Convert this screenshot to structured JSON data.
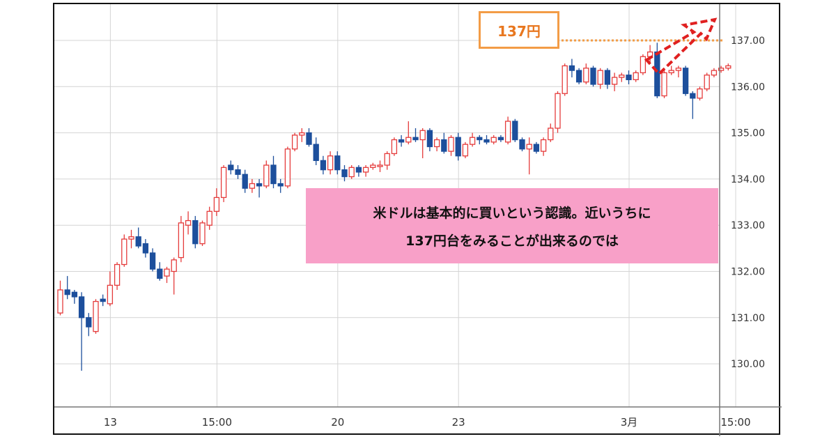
{
  "callout": {
    "label": "137円",
    "level": 137.0,
    "color": "#f39c46"
  },
  "comment": {
    "line1": "米ドルは基本的に買いという認識。近いうちに",
    "line2": "137円台をみることが出来るのでは",
    "bg_color": "#f8a0c8"
  },
  "colors": {
    "up": "#e53b3b",
    "down": "#1d4f9c",
    "grid": "#d4d4d4",
    "arrow": "#e02020"
  },
  "chart_data": {
    "type": "candlestick",
    "title": "",
    "xlabel": "",
    "ylabel": "",
    "ylim": [
      129.0,
      137.8
    ],
    "grid": true,
    "y_ticks": [
      "130.00",
      "131.00",
      "132.00",
      "133.00",
      "134.00",
      "135.00",
      "136.00",
      "137.00"
    ],
    "x_ticks": [
      {
        "label": "13",
        "index": 7
      },
      {
        "label": "15:00",
        "index": 22
      },
      {
        "label": "20",
        "index": 39
      },
      {
        "label": "23",
        "index": 56
      },
      {
        "label": "3月",
        "index": 80
      },
      {
        "label": "15:00",
        "index": 95
      }
    ],
    "candles": [
      [
        131.1,
        131.8,
        131.05,
        131.6
      ],
      [
        131.6,
        131.9,
        131.4,
        131.5
      ],
      [
        131.55,
        131.6,
        131.3,
        131.45
      ],
      [
        131.45,
        131.55,
        129.85,
        131.0
      ],
      [
        131.0,
        131.1,
        130.6,
        130.8
      ],
      [
        130.7,
        131.4,
        130.65,
        131.35
      ],
      [
        131.4,
        131.5,
        131.25,
        131.35
      ],
      [
        131.3,
        132.0,
        131.25,
        131.7
      ],
      [
        131.7,
        132.2,
        131.6,
        132.15
      ],
      [
        132.15,
        132.8,
        132.1,
        132.7
      ],
      [
        132.7,
        132.9,
        132.5,
        132.75
      ],
      [
        132.75,
        132.95,
        132.5,
        132.55
      ],
      [
        132.6,
        132.7,
        132.3,
        132.4
      ],
      [
        132.4,
        132.5,
        132.0,
        132.05
      ],
      [
        132.05,
        132.2,
        131.8,
        131.85
      ],
      [
        131.9,
        132.1,
        131.75,
        132.05
      ],
      [
        132.0,
        132.3,
        131.5,
        132.25
      ],
      [
        132.3,
        133.2,
        132.2,
        133.05
      ],
      [
        133.0,
        133.3,
        132.8,
        133.1
      ],
      [
        133.1,
        133.2,
        132.5,
        132.6
      ],
      [
        132.6,
        133.1,
        132.55,
        133.05
      ],
      [
        133.0,
        133.4,
        132.9,
        133.3
      ],
      [
        133.3,
        133.8,
        133.2,
        133.6
      ],
      [
        133.6,
        134.3,
        133.5,
        134.25
      ],
      [
        134.3,
        134.4,
        134.1,
        134.2
      ],
      [
        134.2,
        134.3,
        134.0,
        134.1
      ],
      [
        134.1,
        134.2,
        133.7,
        133.8
      ],
      [
        133.8,
        134.0,
        133.7,
        133.9
      ],
      [
        133.9,
        134.0,
        133.6,
        133.85
      ],
      [
        133.85,
        134.4,
        133.8,
        134.3
      ],
      [
        134.3,
        134.5,
        133.8,
        133.9
      ],
      [
        133.9,
        134.0,
        133.7,
        133.85
      ],
      [
        133.85,
        134.7,
        133.8,
        134.65
      ],
      [
        134.65,
        135.0,
        134.6,
        134.95
      ],
      [
        134.95,
        135.1,
        134.8,
        135.0
      ],
      [
        135.0,
        135.1,
        134.7,
        134.75
      ],
      [
        134.75,
        134.9,
        134.3,
        134.4
      ],
      [
        134.4,
        134.5,
        134.1,
        134.2
      ],
      [
        134.2,
        134.6,
        134.1,
        134.5
      ],
      [
        134.5,
        134.6,
        134.1,
        134.2
      ],
      [
        134.2,
        134.3,
        133.95,
        134.05
      ],
      [
        134.05,
        134.3,
        134.0,
        134.25
      ],
      [
        134.25,
        134.3,
        134.05,
        134.15
      ],
      [
        134.15,
        134.3,
        134.05,
        134.25
      ],
      [
        134.25,
        134.35,
        134.2,
        134.3
      ],
      [
        134.3,
        134.4,
        134.15,
        134.3
      ],
      [
        134.3,
        134.6,
        134.2,
        134.55
      ],
      [
        134.55,
        134.9,
        134.5,
        134.85
      ],
      [
        134.85,
        134.95,
        134.7,
        134.8
      ],
      [
        134.8,
        135.25,
        134.75,
        134.9
      ],
      [
        134.9,
        135.1,
        134.8,
        134.85
      ],
      [
        134.85,
        135.1,
        134.45,
        135.05
      ],
      [
        135.05,
        135.1,
        134.6,
        134.7
      ],
      [
        134.7,
        134.9,
        134.6,
        134.85
      ],
      [
        134.85,
        135.0,
        134.55,
        134.6
      ],
      [
        134.6,
        134.95,
        134.5,
        134.9
      ],
      [
        134.9,
        135.0,
        134.4,
        134.5
      ],
      [
        134.5,
        134.8,
        134.45,
        134.75
      ],
      [
        134.75,
        135.0,
        134.7,
        134.9
      ],
      [
        134.9,
        134.95,
        134.75,
        134.85
      ],
      [
        134.85,
        134.95,
        134.75,
        134.8
      ],
      [
        134.8,
        134.95,
        134.75,
        134.9
      ],
      [
        134.9,
        134.95,
        134.8,
        134.85
      ],
      [
        134.8,
        135.35,
        134.75,
        135.25
      ],
      [
        135.25,
        135.3,
        134.8,
        134.85
      ],
      [
        134.85,
        134.9,
        134.6,
        134.65
      ],
      [
        134.65,
        134.9,
        134.1,
        134.75
      ],
      [
        134.75,
        134.8,
        134.55,
        134.6
      ],
      [
        134.6,
        134.9,
        134.5,
        134.85
      ],
      [
        134.85,
        135.2,
        134.8,
        135.1
      ],
      [
        135.1,
        135.9,
        135.0,
        135.85
      ],
      [
        135.85,
        136.5,
        135.8,
        136.45
      ],
      [
        136.45,
        136.6,
        136.2,
        136.35
      ],
      [
        136.35,
        136.4,
        136.05,
        136.1
      ],
      [
        136.1,
        136.5,
        136.05,
        136.4
      ],
      [
        136.4,
        136.45,
        136.0,
        136.05
      ],
      [
        136.05,
        136.4,
        135.95,
        136.35
      ],
      [
        136.35,
        136.4,
        135.95,
        136.05
      ],
      [
        136.05,
        136.3,
        135.9,
        136.2
      ],
      [
        136.2,
        136.3,
        136.1,
        136.25
      ],
      [
        136.25,
        136.35,
        136.05,
        136.15
      ],
      [
        136.15,
        136.35,
        136.1,
        136.3
      ],
      [
        136.3,
        136.7,
        136.25,
        136.65
      ],
      [
        136.65,
        136.9,
        136.5,
        136.75
      ],
      [
        136.75,
        136.95,
        135.75,
        135.8
      ],
      [
        135.8,
        136.4,
        135.75,
        136.3
      ],
      [
        136.3,
        136.45,
        136.25,
        136.35
      ],
      [
        136.35,
        136.45,
        136.2,
        136.4
      ],
      [
        136.4,
        136.45,
        135.8,
        135.85
      ],
      [
        135.85,
        135.9,
        135.3,
        135.75
      ],
      [
        135.75,
        136.0,
        135.7,
        135.95
      ],
      [
        135.95,
        136.3,
        135.9,
        136.25
      ],
      [
        136.25,
        136.4,
        136.2,
        136.35
      ],
      [
        136.35,
        136.45,
        136.3,
        136.4
      ],
      [
        136.4,
        136.5,
        136.35,
        136.45
      ]
    ]
  }
}
